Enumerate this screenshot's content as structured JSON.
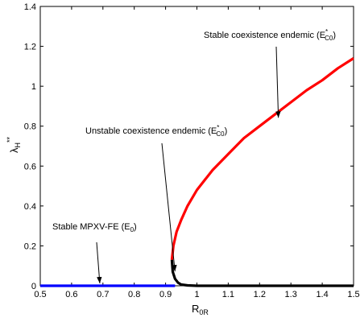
{
  "chart_data": {
    "type": "line",
    "xlabel": {
      "main": "R",
      "sub": "0R"
    },
    "ylabel": {
      "main": "λ",
      "sub": "H",
      "sup": "**"
    },
    "xlim": [
      0.5,
      1.5
    ],
    "ylim": [
      0,
      1.4
    ],
    "xticks": [
      "0.5",
      "0.6",
      "0.7",
      "0.8",
      "0.9",
      "1",
      "1.1",
      "1.2",
      "1.3",
      "1.4",
      "1.5"
    ],
    "yticks": [
      "0",
      "0.2",
      "0.4",
      "0.6",
      "0.8",
      "1",
      "1.2",
      "1.4"
    ],
    "grid": false,
    "colors": {
      "stable_endemic": "#ff0000",
      "unstable_endemic": "#000000",
      "disease_free": "#0000ff"
    },
    "series": [
      {
        "key": "stable_endemic",
        "color": "#ff0000",
        "x": [
          0.92,
          0.925,
          0.935,
          0.95,
          0.97,
          1.0,
          1.05,
          1.1,
          1.15,
          1.2,
          1.25,
          1.3,
          1.35,
          1.4,
          1.45,
          1.5
        ],
        "y": [
          0.13,
          0.2,
          0.27,
          0.33,
          0.4,
          0.48,
          0.58,
          0.66,
          0.74,
          0.8,
          0.86,
          0.92,
          0.98,
          1.03,
          1.09,
          1.14
        ]
      },
      {
        "key": "unstable_endemic",
        "color": "#000000",
        "x": [
          0.92,
          0.923,
          0.93,
          0.94,
          0.95,
          0.97,
          1.0,
          1.1,
          1.2,
          1.3,
          1.4,
          1.5
        ],
        "y": [
          0.13,
          0.07,
          0.035,
          0.015,
          0.006,
          0.002,
          0.0,
          0.0,
          0.0,
          0.0,
          0.0,
          0.0
        ]
      },
      {
        "key": "disease_free",
        "color": "#0000ff",
        "x": [
          0.5,
          0.93
        ],
        "y": [
          0.0,
          0.0
        ]
      }
    ],
    "annotations": [
      {
        "key": "stable_coexistence",
        "text": "Stable coexistence endemic (E",
        "sub": "C0",
        "sup": "*",
        "close": ")",
        "point": [
          1.26,
          0.83
        ]
      },
      {
        "key": "unstable_coexistence",
        "text": "Unstable coexistence endemic (E",
        "sub": "C0",
        "sup": "*",
        "close": ")",
        "point": [
          0.93,
          0.06
        ]
      },
      {
        "key": "stable_mpxv_fe",
        "text": "Stable MPXV-FE (E",
        "sub": "0",
        "sup": "",
        "close": ")",
        "point": [
          0.69,
          0.0
        ]
      }
    ]
  }
}
